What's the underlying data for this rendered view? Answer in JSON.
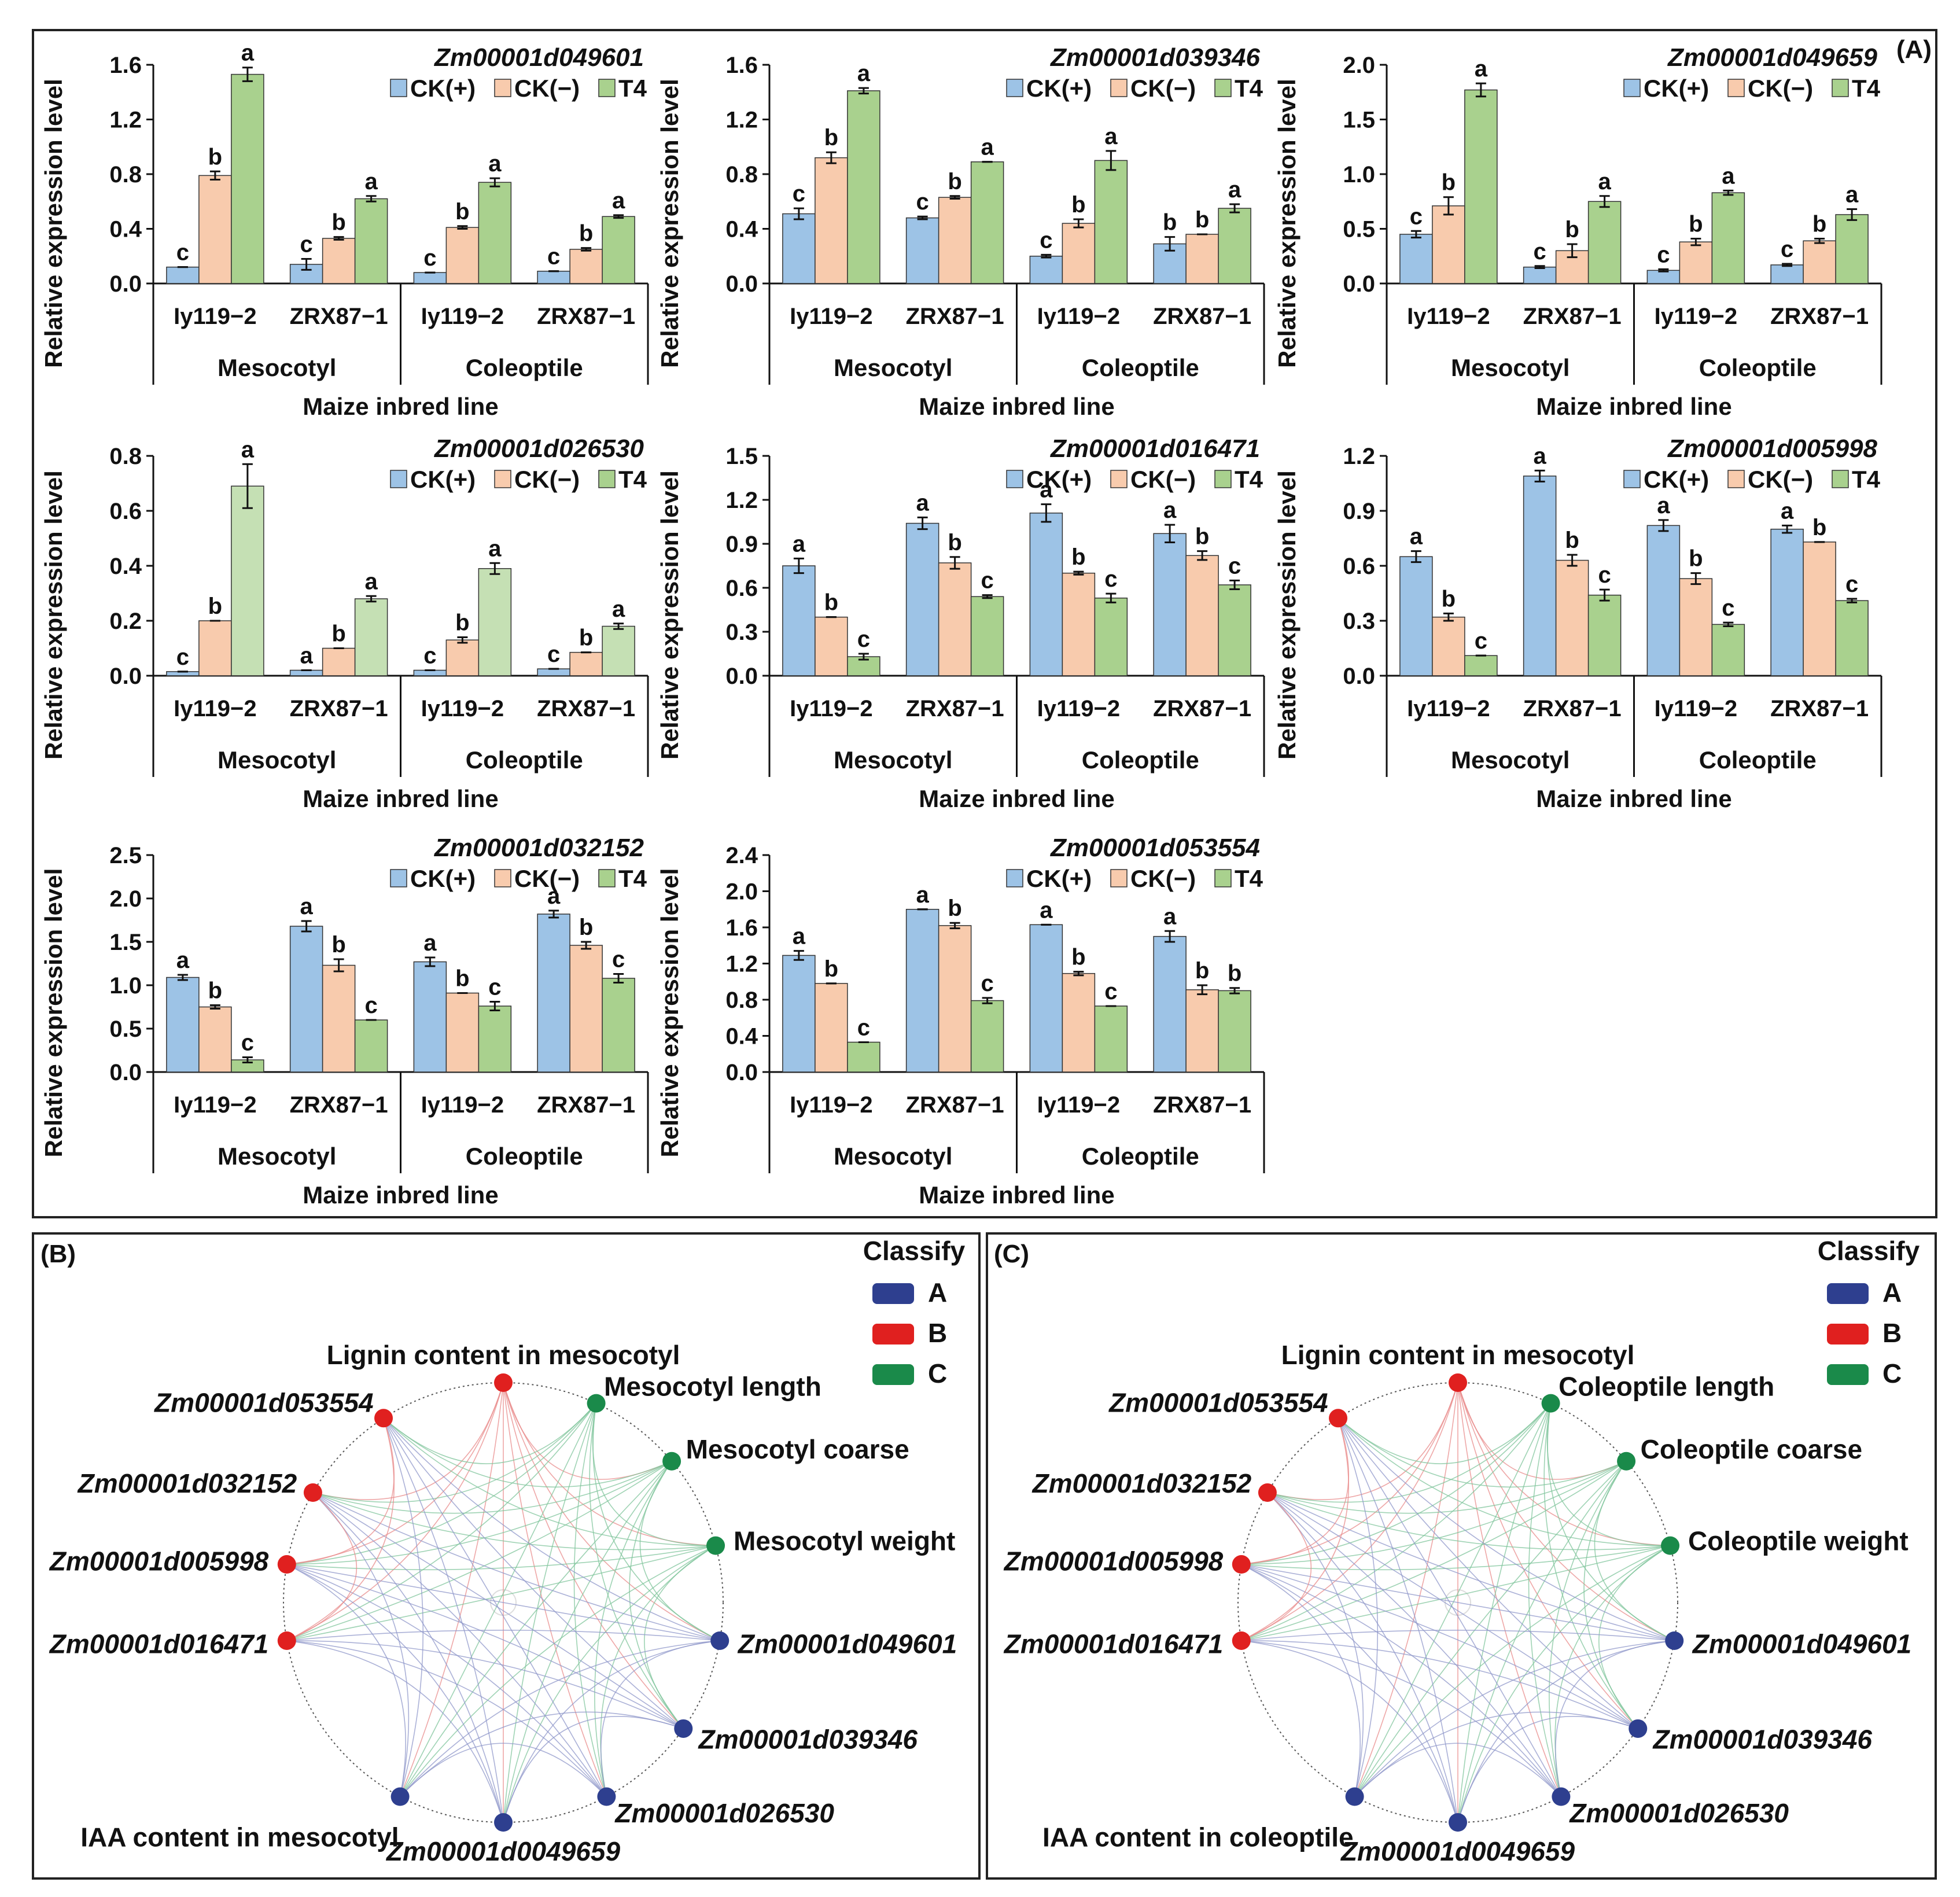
{
  "panel_labels": {
    "a": "(A)",
    "b": "(B)",
    "c": "(C)"
  },
  "common": {
    "ylabel": "Relative expression level",
    "xlabel": "Maize inbred line",
    "lines": [
      "Iy119−2",
      "ZRX87−1"
    ],
    "tissues": [
      "Mesocotyl",
      "Coleoptile"
    ],
    "legend": [
      "CK(+)",
      "CK(−)",
      "T4"
    ]
  },
  "colors": {
    "ck_plus": "#9dc3e6",
    "ck_minus": "#f8cbad",
    "t4": "#a9d18e",
    "t4_light": "#c5e0b4",
    "node_a": "#2e3f8f",
    "node_b": "#e0201f",
    "node_c": "#1a8a4a",
    "edge_a": "#8f97c9",
    "edge_b": "#e88a8a",
    "edge_c": "#7fc49b"
  },
  "chart_data": [
    {
      "type": "bar",
      "title": "Zm00001d049601",
      "ylim": [
        0,
        1.6
      ],
      "yticks": [
        "0.0",
        "0.4",
        "0.8",
        "1.2",
        "1.6"
      ],
      "groups": [
        {
          "line": "Iy119−2",
          "tissue": "Mesocotyl",
          "values": [
            0.12,
            0.79,
            1.53
          ],
          "errors": [
            0.0,
            0.03,
            0.05
          ],
          "letters": [
            "c",
            "b",
            "a"
          ]
        },
        {
          "line": "ZRX87−1",
          "tissue": "Mesocotyl",
          "values": [
            0.14,
            0.33,
            0.62
          ],
          "errors": [
            0.04,
            0.01,
            0.02
          ],
          "letters": [
            "c",
            "b",
            "a"
          ]
        },
        {
          "line": "Iy119−2",
          "tissue": "Coleoptile",
          "values": [
            0.08,
            0.41,
            0.74
          ],
          "errors": [
            0.0,
            0.01,
            0.03
          ],
          "letters": [
            "c",
            "b",
            "a"
          ]
        },
        {
          "line": "ZRX87−1",
          "tissue": "Coleoptile",
          "values": [
            0.09,
            0.25,
            0.49
          ],
          "errors": [
            0.0,
            0.01,
            0.01
          ],
          "letters": [
            "c",
            "b",
            "a"
          ]
        }
      ]
    },
    {
      "type": "bar",
      "title": "Zm00001d039346",
      "ylim": [
        0,
        1.6
      ],
      "yticks": [
        "0.0",
        "0.4",
        "0.8",
        "1.2",
        "1.6"
      ],
      "groups": [
        {
          "line": "Iy119−2",
          "tissue": "Mesocotyl",
          "values": [
            0.51,
            0.92,
            1.41
          ],
          "errors": [
            0.04,
            0.04,
            0.02
          ],
          "letters": [
            "c",
            "b",
            "a"
          ]
        },
        {
          "line": "ZRX87−1",
          "tissue": "Mesocotyl",
          "values": [
            0.48,
            0.63,
            0.89
          ],
          "errors": [
            0.01,
            0.01,
            0.0
          ],
          "letters": [
            "c",
            "b",
            "a"
          ]
        },
        {
          "line": "Iy119−2",
          "tissue": "Coleoptile",
          "values": [
            0.2,
            0.44,
            0.9
          ],
          "errors": [
            0.01,
            0.03,
            0.07
          ],
          "letters": [
            "c",
            "b",
            "a"
          ]
        },
        {
          "line": "ZRX87−1",
          "tissue": "Coleoptile",
          "values": [
            0.29,
            0.36,
            0.55
          ],
          "errors": [
            0.05,
            0.0,
            0.03
          ],
          "letters": [
            "b",
            "b",
            "a"
          ]
        }
      ]
    },
    {
      "type": "bar",
      "title": "Zm00001d049659",
      "ylim": [
        0,
        2.0
      ],
      "yticks": [
        "0.0",
        "0.5",
        "1.0",
        "1.5",
        "2.0"
      ],
      "groups": [
        {
          "line": "Iy119−2",
          "tissue": "Mesocotyl",
          "values": [
            0.45,
            0.71,
            1.77
          ],
          "errors": [
            0.03,
            0.08,
            0.06
          ],
          "letters": [
            "c",
            "b",
            "a"
          ]
        },
        {
          "line": "ZRX87−1",
          "tissue": "Mesocotyl",
          "values": [
            0.15,
            0.3,
            0.75
          ],
          "errors": [
            0.01,
            0.06,
            0.05
          ],
          "letters": [
            "c",
            "b",
            "a"
          ]
        },
        {
          "line": "Iy119−2",
          "tissue": "Coleoptile",
          "values": [
            0.12,
            0.38,
            0.83
          ],
          "errors": [
            0.01,
            0.03,
            0.02
          ],
          "letters": [
            "c",
            "b",
            "a"
          ]
        },
        {
          "line": "ZRX87−1",
          "tissue": "Coleoptile",
          "values": [
            0.17,
            0.39,
            0.63
          ],
          "errors": [
            0.01,
            0.02,
            0.05
          ],
          "letters": [
            "c",
            "b",
            "a"
          ]
        }
      ]
    },
    {
      "type": "bar",
      "title": "Zm00001d026530",
      "ylim": [
        0,
        0.8
      ],
      "yticks": [
        "0.0",
        "0.2",
        "0.4",
        "0.6",
        "0.8"
      ],
      "groups": [
        {
          "line": "Iy119−2",
          "tissue": "Mesocotyl",
          "values": [
            0.015,
            0.2,
            0.69
          ],
          "errors": [
            0.0,
            0.0,
            0.08
          ],
          "letters": [
            "c",
            "b",
            "a"
          ]
        },
        {
          "line": "ZRX87−1",
          "tissue": "Mesocotyl",
          "values": [
            0.02,
            0.1,
            0.28
          ],
          "errors": [
            0.0,
            0.0,
            0.01
          ],
          "letters": [
            "a",
            "b",
            "a"
          ]
        },
        {
          "line": "Iy119−2",
          "tissue": "Coleoptile",
          "values": [
            0.02,
            0.13,
            0.39
          ],
          "errors": [
            0.0,
            0.01,
            0.02
          ],
          "letters": [
            "c",
            "b",
            "a"
          ]
        },
        {
          "line": "ZRX87−1",
          "tissue": "Coleoptile",
          "values": [
            0.025,
            0.085,
            0.18
          ],
          "errors": [
            0.0,
            0.0,
            0.01
          ],
          "letters": [
            "c",
            "b",
            "a"
          ]
        }
      ]
    },
    {
      "type": "bar",
      "title": "Zm00001d016471",
      "ylim": [
        0,
        1.5
      ],
      "yticks": [
        "0.0",
        "0.3",
        "0.6",
        "0.9",
        "1.2",
        "1.5"
      ],
      "groups": [
        {
          "line": "Iy119−2",
          "tissue": "Mesocotyl",
          "values": [
            0.75,
            0.4,
            0.13
          ],
          "errors": [
            0.05,
            0.0,
            0.02
          ],
          "letters": [
            "a",
            "b",
            "c"
          ]
        },
        {
          "line": "ZRX87−1",
          "tissue": "Mesocotyl",
          "values": [
            1.04,
            0.77,
            0.54
          ],
          "errors": [
            0.04,
            0.04,
            0.01
          ],
          "letters": [
            "a",
            "b",
            "c"
          ]
        },
        {
          "line": "Iy119−2",
          "tissue": "Coleoptile",
          "values": [
            1.11,
            0.7,
            0.53
          ],
          "errors": [
            0.06,
            0.01,
            0.03
          ],
          "letters": [
            "a",
            "b",
            "c"
          ]
        },
        {
          "line": "ZRX87−1",
          "tissue": "Coleoptile",
          "values": [
            0.97,
            0.82,
            0.62
          ],
          "errors": [
            0.06,
            0.03,
            0.03
          ],
          "letters": [
            "a",
            "b",
            "c"
          ]
        }
      ]
    },
    {
      "type": "bar",
      "title": "Zm00001d005998",
      "ylim": [
        0,
        1.2
      ],
      "yticks": [
        "0.0",
        "0.3",
        "0.6",
        "0.9",
        "1.2"
      ],
      "groups": [
        {
          "line": "Iy119−2",
          "tissue": "Mesocotyl",
          "values": [
            0.65,
            0.32,
            0.11
          ],
          "errors": [
            0.03,
            0.02,
            0.0
          ],
          "letters": [
            "a",
            "b",
            "c"
          ]
        },
        {
          "line": "ZRX87−1",
          "tissue": "Mesocotyl",
          "values": [
            1.09,
            0.63,
            0.44
          ],
          "errors": [
            0.03,
            0.03,
            0.03
          ],
          "letters": [
            "a",
            "b",
            "c"
          ]
        },
        {
          "line": "Iy119−2",
          "tissue": "Coleoptile",
          "values": [
            0.82,
            0.53,
            0.28
          ],
          "errors": [
            0.03,
            0.03,
            0.01
          ],
          "letters": [
            "a",
            "b",
            "c"
          ]
        },
        {
          "line": "ZRX87−1",
          "tissue": "Coleoptile",
          "values": [
            0.8,
            0.73,
            0.41
          ],
          "errors": [
            0.02,
            0.0,
            0.01
          ],
          "letters": [
            "a",
            "b",
            "c"
          ]
        }
      ]
    },
    {
      "type": "bar",
      "title": "Zm00001d032152",
      "ylim": [
        0,
        2.5
      ],
      "yticks": [
        "0.0",
        "0.5",
        "1.0",
        "1.5",
        "2.0",
        "2.5"
      ],
      "groups": [
        {
          "line": "Iy119−2",
          "tissue": "Mesocotyl",
          "values": [
            1.09,
            0.75,
            0.14
          ],
          "errors": [
            0.03,
            0.02,
            0.03
          ],
          "letters": [
            "a",
            "b",
            "c"
          ]
        },
        {
          "line": "ZRX87−1",
          "tissue": "Mesocotyl",
          "values": [
            1.68,
            1.23,
            0.6
          ],
          "errors": [
            0.06,
            0.07,
            0.0
          ],
          "letters": [
            "a",
            "b",
            "c"
          ]
        },
        {
          "line": "Iy119−2",
          "tissue": "Coleoptile",
          "values": [
            1.27,
            0.91,
            0.76
          ],
          "errors": [
            0.05,
            0.0,
            0.05
          ],
          "letters": [
            "a",
            "b",
            "c"
          ]
        },
        {
          "line": "ZRX87−1",
          "tissue": "Coleoptile",
          "values": [
            1.82,
            1.46,
            1.08
          ],
          "errors": [
            0.04,
            0.04,
            0.05
          ],
          "letters": [
            "a",
            "b",
            "c"
          ]
        }
      ]
    },
    {
      "type": "bar",
      "title": "Zm00001d053554",
      "ylim": [
        0,
        2.4
      ],
      "yticks": [
        "0.0",
        "0.4",
        "0.8",
        "1.2",
        "1.6",
        "2.0",
        "2.4"
      ],
      "groups": [
        {
          "line": "Iy119−2",
          "tissue": "Mesocotyl",
          "values": [
            1.29,
            0.98,
            0.33
          ],
          "errors": [
            0.05,
            0.0,
            0.0
          ],
          "letters": [
            "a",
            "b",
            "c"
          ]
        },
        {
          "line": "ZRX87−1",
          "tissue": "Mesocotyl",
          "values": [
            1.8,
            1.62,
            0.79
          ],
          "errors": [
            0.0,
            0.03,
            0.03
          ],
          "letters": [
            "a",
            "b",
            "c"
          ]
        },
        {
          "line": "Iy119−2",
          "tissue": "Coleoptile",
          "values": [
            1.63,
            1.09,
            0.73
          ],
          "errors": [
            0.0,
            0.02,
            0.0
          ],
          "letters": [
            "a",
            "b",
            "c"
          ]
        },
        {
          "line": "ZRX87−1",
          "tissue": "Coleoptile",
          "values": [
            1.5,
            0.91,
            0.9
          ],
          "errors": [
            0.06,
            0.05,
            0.03
          ],
          "letters": [
            "a",
            "b",
            "b"
          ]
        }
      ]
    }
  ],
  "networks": {
    "legend_title": "Classify",
    "classes": [
      "A",
      "B",
      "C"
    ],
    "b": [
      {
        "label": "Lignin content in mesocotyl",
        "cls": "B",
        "italic": false
      },
      {
        "label": "Mesocotyl length",
        "cls": "C",
        "italic": false
      },
      {
        "label": "Mesocotyl coarse",
        "cls": "C",
        "italic": false
      },
      {
        "label": "Mesocotyl weight",
        "cls": "C",
        "italic": false
      },
      {
        "label": "Zm00001d049601",
        "cls": "A",
        "italic": true
      },
      {
        "label": "Zm00001d039346",
        "cls": "A",
        "italic": true
      },
      {
        "label": "Zm00001d026530",
        "cls": "A",
        "italic": true
      },
      {
        "label": "Zm00001d0049659",
        "cls": "A",
        "italic": true
      },
      {
        "label": "IAA content in mesocotyl",
        "cls": "A",
        "italic": false
      },
      {
        "label": "Zm00001d016471",
        "cls": "B",
        "italic": true
      },
      {
        "label": "Zm00001d005998",
        "cls": "B",
        "italic": true
      },
      {
        "label": "Zm00001d032152",
        "cls": "B",
        "italic": true
      },
      {
        "label": "Zm00001d053554",
        "cls": "B",
        "italic": true
      }
    ],
    "c": [
      {
        "label": "Lignin content in mesocotyl",
        "cls": "B",
        "italic": false
      },
      {
        "label": "Coleoptile length",
        "cls": "C",
        "italic": false
      },
      {
        "label": "Coleoptile coarse",
        "cls": "C",
        "italic": false
      },
      {
        "label": "Coleoptile weight",
        "cls": "C",
        "italic": false
      },
      {
        "label": "Zm00001d049601",
        "cls": "A",
        "italic": true
      },
      {
        "label": "Zm00001d039346",
        "cls": "A",
        "italic": true
      },
      {
        "label": "Zm00001d026530",
        "cls": "A",
        "italic": true
      },
      {
        "label": "Zm00001d0049659",
        "cls": "A",
        "italic": true
      },
      {
        "label": "IAA content in coleoptile",
        "cls": "A",
        "italic": false
      },
      {
        "label": "Zm00001d016471",
        "cls": "B",
        "italic": true
      },
      {
        "label": "Zm00001d005998",
        "cls": "B",
        "italic": true
      },
      {
        "label": "Zm00001d032152",
        "cls": "B",
        "italic": true
      },
      {
        "label": "Zm00001d053554",
        "cls": "B",
        "italic": true
      }
    ]
  }
}
